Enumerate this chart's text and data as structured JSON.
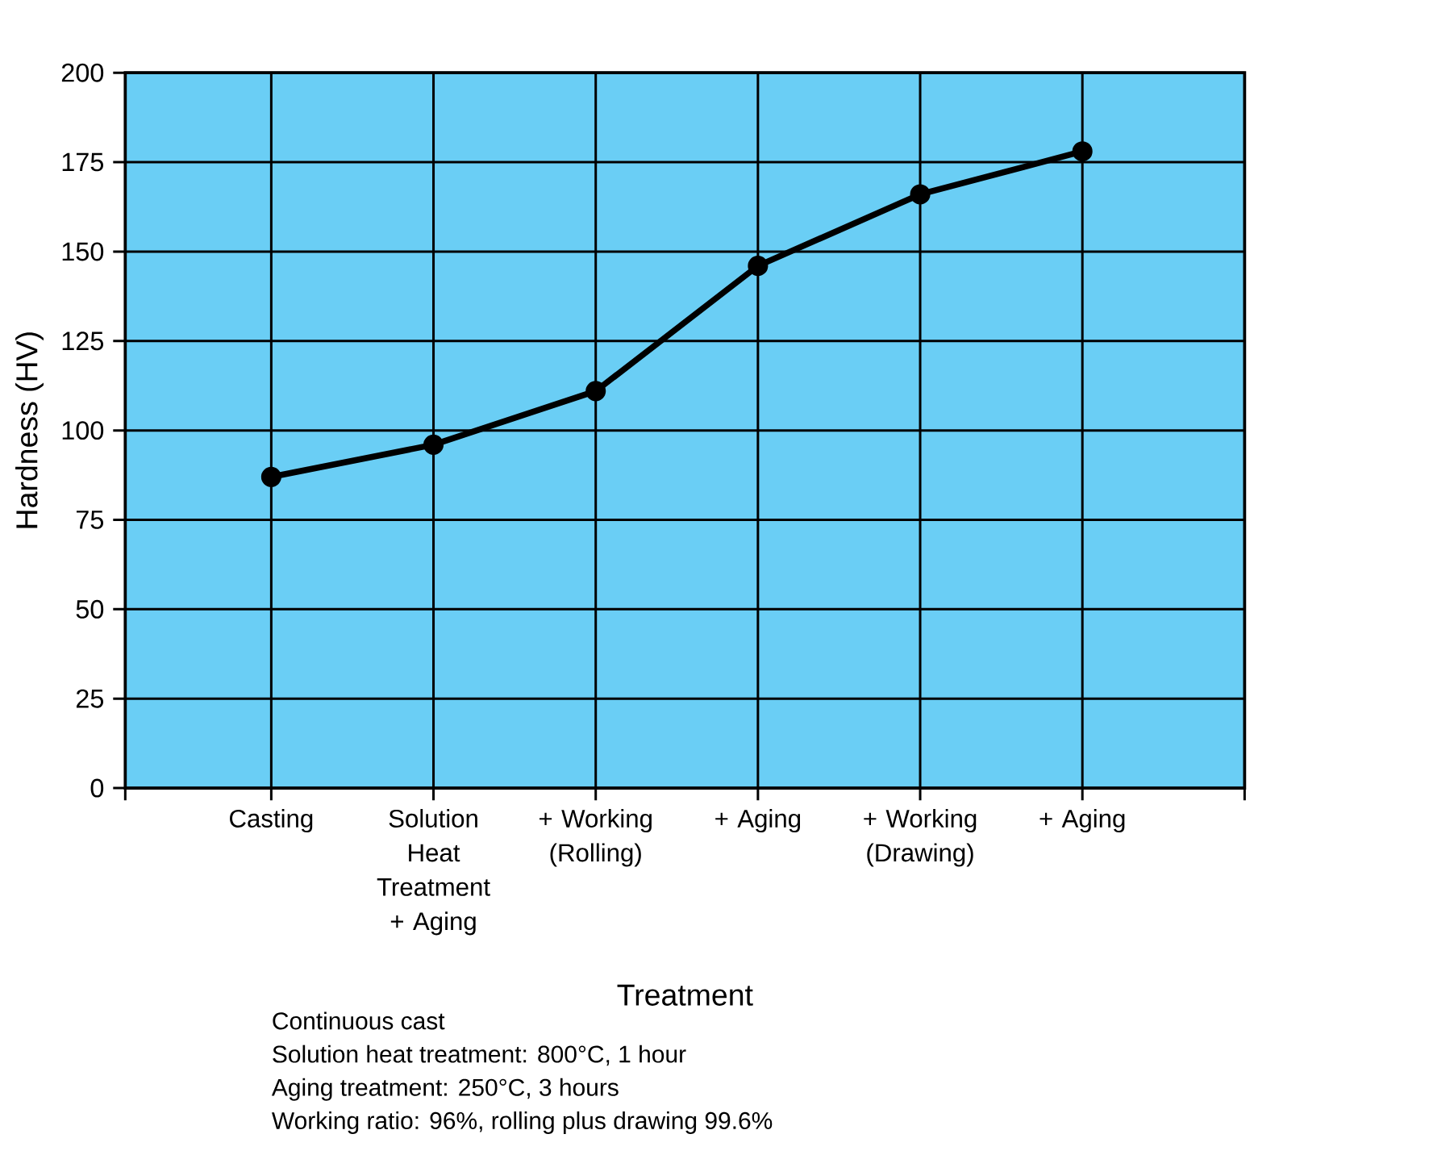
{
  "chart_data": {
    "type": "line",
    "xlabel": "Treatment",
    "ylabel": "Hardness (HV)",
    "categories": [
      "Casting",
      "Solution Heat Treatment + Aging",
      "+ Working (Rolling)",
      "+ Aging",
      "+ Working (Drawing)",
      "+ Aging"
    ],
    "series": [
      {
        "color": "#000000",
        "values": [
          87,
          96,
          111,
          146,
          166,
          178
        ]
      }
    ],
    "ylim": [
      0,
      200
    ],
    "yticks": [
      0,
      25,
      50,
      75,
      100,
      125,
      150,
      175,
      200
    ],
    "grid": true,
    "marker": "circle",
    "line_style": "solid",
    "annotations": [
      "Continuous cast",
      "Solution heat treatment: 800°C, 1 hour",
      "Aging treatment: 250°C, 3 hours",
      "Working ratio: 96%, rolling plus drawing 99.6%"
    ]
  }
}
